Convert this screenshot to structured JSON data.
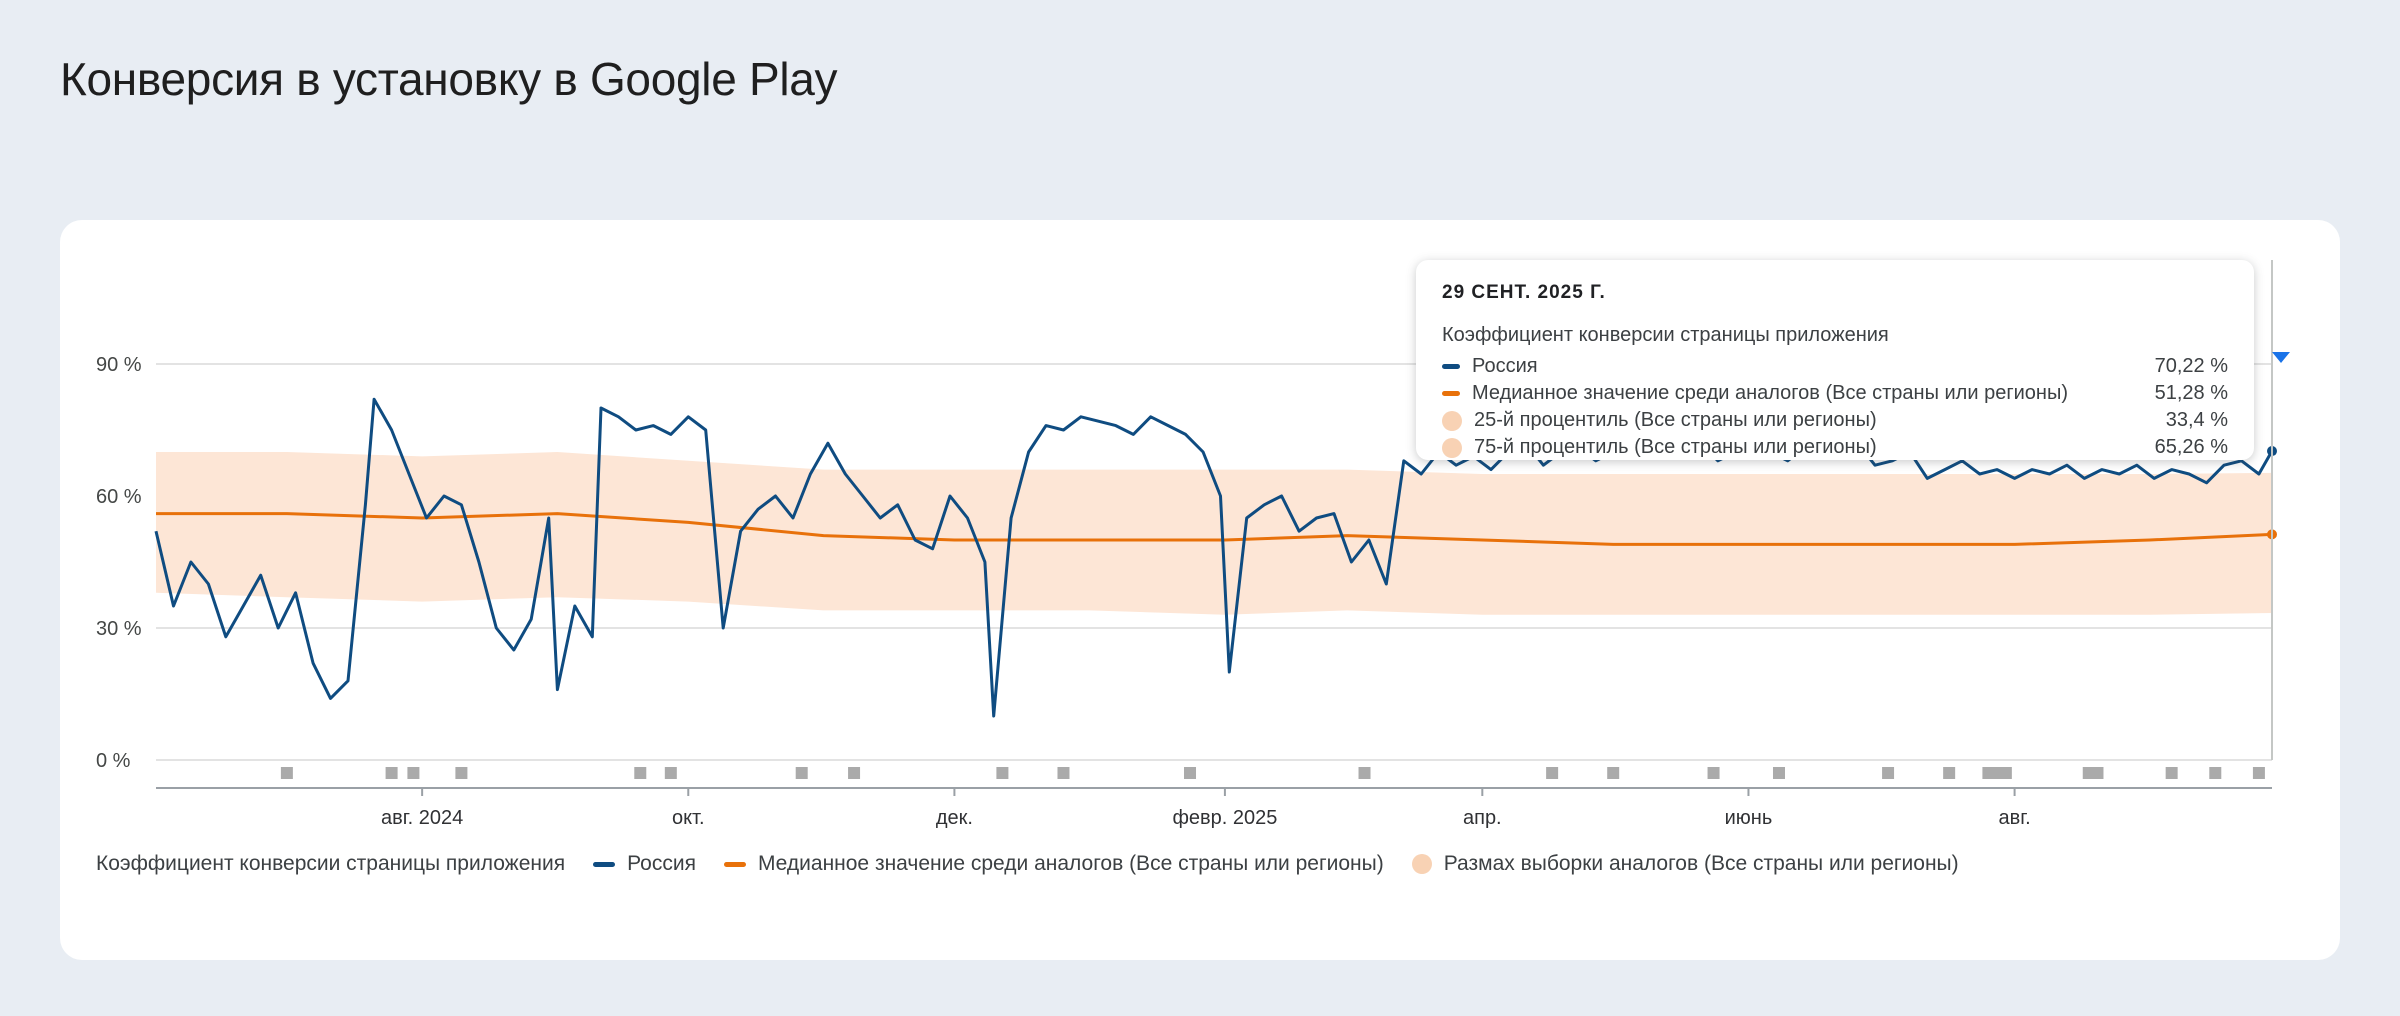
{
  "page": {
    "title": "Конверсия в установку в Google Play"
  },
  "colors": {
    "russia": "#0f4c81",
    "median": "#e8710a",
    "range": "#fde6d6",
    "range_dot": "#f8d2b4",
    "event_marker": "#aaaaaa",
    "grid": "#e3e3e3"
  },
  "chart_data": {
    "type": "line",
    "x_start": "2024-06-01",
    "x_end": "2025-09-29",
    "y_ticks": [
      "0 %",
      "30 %",
      "60 %",
      "90 %"
    ],
    "ylim": [
      0,
      100
    ],
    "x_ticks": [
      {
        "label": "авг. 2024",
        "date": "2024-08-01"
      },
      {
        "label": "окт.",
        "date": "2024-10-01"
      },
      {
        "label": "дек.",
        "date": "2024-12-01"
      },
      {
        "label": "февр. 2025",
        "date": "2025-02-01"
      },
      {
        "label": "апр.",
        "date": "2025-04-01"
      },
      {
        "label": "июнь",
        "date": "2025-06-01"
      },
      {
        "label": "авг.",
        "date": "2025-08-01"
      }
    ],
    "series": [
      {
        "name": "Россия",
        "values_by_date": [
          [
            "2024-06-01",
            52
          ],
          [
            "2024-06-05",
            35
          ],
          [
            "2024-06-09",
            45
          ],
          [
            "2024-06-13",
            40
          ],
          [
            "2024-06-17",
            28
          ],
          [
            "2024-06-21",
            35
          ],
          [
            "2024-06-25",
            42
          ],
          [
            "2024-06-29",
            30
          ],
          [
            "2024-07-03",
            38
          ],
          [
            "2024-07-07",
            22
          ],
          [
            "2024-07-11",
            14
          ],
          [
            "2024-07-15",
            18
          ],
          [
            "2024-07-19",
            58
          ],
          [
            "2024-07-21",
            82
          ],
          [
            "2024-07-25",
            75
          ],
          [
            "2024-07-29",
            65
          ],
          [
            "2024-08-02",
            55
          ],
          [
            "2024-08-06",
            60
          ],
          [
            "2024-08-10",
            58
          ],
          [
            "2024-08-14",
            45
          ],
          [
            "2024-08-18",
            30
          ],
          [
            "2024-08-22",
            25
          ],
          [
            "2024-08-26",
            32
          ],
          [
            "2024-08-30",
            55
          ],
          [
            "2024-09-01",
            16
          ],
          [
            "2024-09-05",
            35
          ],
          [
            "2024-09-09",
            28
          ],
          [
            "2024-09-11",
            80
          ],
          [
            "2024-09-15",
            78
          ],
          [
            "2024-09-19",
            75
          ],
          [
            "2024-09-23",
            76
          ],
          [
            "2024-09-27",
            74
          ],
          [
            "2024-10-01",
            78
          ],
          [
            "2024-10-05",
            75
          ],
          [
            "2024-10-09",
            30
          ],
          [
            "2024-10-13",
            52
          ],
          [
            "2024-10-17",
            57
          ],
          [
            "2024-10-21",
            60
          ],
          [
            "2024-10-25",
            55
          ],
          [
            "2024-10-29",
            65
          ],
          [
            "2024-11-02",
            72
          ],
          [
            "2024-11-06",
            65
          ],
          [
            "2024-11-10",
            60
          ],
          [
            "2024-11-14",
            55
          ],
          [
            "2024-11-18",
            58
          ],
          [
            "2024-11-22",
            50
          ],
          [
            "2024-11-26",
            48
          ],
          [
            "2024-11-30",
            60
          ],
          [
            "2024-12-04",
            55
          ],
          [
            "2024-12-08",
            45
          ],
          [
            "2024-12-10",
            10
          ],
          [
            "2024-12-14",
            55
          ],
          [
            "2024-12-18",
            70
          ],
          [
            "2024-12-22",
            76
          ],
          [
            "2024-12-26",
            75
          ],
          [
            "2024-12-30",
            78
          ],
          [
            "2025-01-03",
            77
          ],
          [
            "2025-01-07",
            76
          ],
          [
            "2025-01-11",
            74
          ],
          [
            "2025-01-15",
            78
          ],
          [
            "2025-01-19",
            76
          ],
          [
            "2025-01-23",
            74
          ],
          [
            "2025-01-27",
            70
          ],
          [
            "2025-01-31",
            60
          ],
          [
            "2025-02-02",
            20
          ],
          [
            "2025-02-06",
            55
          ],
          [
            "2025-02-10",
            58
          ],
          [
            "2025-02-14",
            60
          ],
          [
            "2025-02-18",
            52
          ],
          [
            "2025-02-22",
            55
          ],
          [
            "2025-02-26",
            56
          ],
          [
            "2025-03-02",
            45
          ],
          [
            "2025-03-06",
            50
          ],
          [
            "2025-03-10",
            40
          ],
          [
            "2025-03-14",
            68
          ],
          [
            "2025-03-18",
            65
          ],
          [
            "2025-03-22",
            70
          ],
          [
            "2025-03-26",
            67
          ],
          [
            "2025-03-30",
            69
          ],
          [
            "2025-04-03",
            66
          ],
          [
            "2025-04-07",
            70
          ],
          [
            "2025-04-11",
            72
          ],
          [
            "2025-04-15",
            67
          ],
          [
            "2025-04-19",
            70
          ],
          [
            "2025-04-23",
            71
          ],
          [
            "2025-04-27",
            68
          ],
          [
            "2025-05-01",
            70
          ],
          [
            "2025-05-05",
            72
          ],
          [
            "2025-05-09",
            69
          ],
          [
            "2025-05-13",
            71
          ],
          [
            "2025-05-17",
            70
          ],
          [
            "2025-05-21",
            72
          ],
          [
            "2025-05-25",
            68
          ],
          [
            "2025-05-29",
            70
          ],
          [
            "2025-06-02",
            73
          ],
          [
            "2025-06-06",
            70
          ],
          [
            "2025-06-10",
            68
          ],
          [
            "2025-06-14",
            71
          ],
          [
            "2025-06-18",
            69
          ],
          [
            "2025-06-22",
            70
          ],
          [
            "2025-06-26",
            72
          ],
          [
            "2025-06-30",
            67
          ],
          [
            "2025-07-04",
            68
          ],
          [
            "2025-07-08",
            70
          ],
          [
            "2025-07-12",
            64
          ],
          [
            "2025-07-16",
            66
          ],
          [
            "2025-07-20",
            68
          ],
          [
            "2025-07-24",
            65
          ],
          [
            "2025-07-28",
            66
          ],
          [
            "2025-08-01",
            64
          ],
          [
            "2025-08-05",
            66
          ],
          [
            "2025-08-09",
            65
          ],
          [
            "2025-08-13",
            67
          ],
          [
            "2025-08-17",
            64
          ],
          [
            "2025-08-21",
            66
          ],
          [
            "2025-08-25",
            65
          ],
          [
            "2025-08-29",
            67
          ],
          [
            "2025-09-02",
            64
          ],
          [
            "2025-09-06",
            66
          ],
          [
            "2025-09-10",
            65
          ],
          [
            "2025-09-14",
            63
          ],
          [
            "2025-09-18",
            67
          ],
          [
            "2025-09-22",
            68
          ],
          [
            "2025-09-26",
            65
          ],
          [
            "2025-09-29",
            70.22
          ]
        ]
      },
      {
        "name": "Медианное значение среди аналогов (Все страны или регионы)",
        "values_by_date": [
          [
            "2024-06-01",
            56
          ],
          [
            "2024-07-01",
            56
          ],
          [
            "2024-08-01",
            55
          ],
          [
            "2024-09-01",
            56
          ],
          [
            "2024-10-01",
            54
          ],
          [
            "2024-11-01",
            51
          ],
          [
            "2024-12-01",
            50
          ],
          [
            "2025-01-01",
            50
          ],
          [
            "2025-02-01",
            50
          ],
          [
            "2025-03-01",
            51
          ],
          [
            "2025-04-01",
            50
          ],
          [
            "2025-05-01",
            49
          ],
          [
            "2025-06-01",
            49
          ],
          [
            "2025-07-01",
            49
          ],
          [
            "2025-08-01",
            49
          ],
          [
            "2025-09-01",
            50
          ],
          [
            "2025-09-29",
            51.28
          ]
        ]
      },
      {
        "name": "25-й процентиль (Все страны или регионы)",
        "values_by_date": [
          [
            "2024-06-01",
            38
          ],
          [
            "2024-07-01",
            37
          ],
          [
            "2024-08-01",
            36
          ],
          [
            "2024-09-01",
            37
          ],
          [
            "2024-10-01",
            36
          ],
          [
            "2024-11-01",
            34
          ],
          [
            "2024-12-01",
            34
          ],
          [
            "2025-01-01",
            34
          ],
          [
            "2025-02-01",
            33
          ],
          [
            "2025-03-01",
            34
          ],
          [
            "2025-04-01",
            33
          ],
          [
            "2025-05-01",
            33
          ],
          [
            "2025-06-01",
            33
          ],
          [
            "2025-07-01",
            33
          ],
          [
            "2025-08-01",
            33
          ],
          [
            "2025-09-01",
            33
          ],
          [
            "2025-09-29",
            33.4
          ]
        ]
      },
      {
        "name": "75-й процентиль (Все страны или регионы)",
        "values_by_date": [
          [
            "2024-06-01",
            70
          ],
          [
            "2024-07-01",
            70
          ],
          [
            "2024-08-01",
            69
          ],
          [
            "2024-09-01",
            70
          ],
          [
            "2024-10-01",
            68
          ],
          [
            "2024-11-01",
            66
          ],
          [
            "2024-12-01",
            66
          ],
          [
            "2025-01-01",
            66
          ],
          [
            "2025-02-01",
            66
          ],
          [
            "2025-03-01",
            66
          ],
          [
            "2025-04-01",
            65
          ],
          [
            "2025-05-01",
            65
          ],
          [
            "2025-06-01",
            65
          ],
          [
            "2025-07-01",
            65
          ],
          [
            "2025-08-01",
            65
          ],
          [
            "2025-09-01",
            65
          ],
          [
            "2025-09-29",
            65.26
          ]
        ]
      }
    ],
    "event_marker_dates": [
      "2024-07-01",
      "2024-07-25",
      "2024-07-30",
      "2024-08-10",
      "2024-09-20",
      "2024-09-27",
      "2024-10-27",
      "2024-11-08",
      "2024-12-12",
      "2024-12-26",
      "2025-01-24",
      "2025-03-05",
      "2025-04-17",
      "2025-05-01",
      "2025-05-24",
      "2025-06-08",
      "2025-07-03",
      "2025-07-17",
      "2025-07-26",
      "2025-07-28",
      "2025-07-30",
      "2025-08-18",
      "2025-08-20",
      "2025-09-06",
      "2025-09-16",
      "2025-09-26"
    ]
  },
  "legend": {
    "title": "Коэффициент конверсии страницы приложения",
    "items": [
      {
        "label": "Россия",
        "kind": "line",
        "color": "#0f4c81"
      },
      {
        "label": "Медианное значение среди аналогов (Все страны или регионы)",
        "kind": "line",
        "color": "#e8710a"
      },
      {
        "label": "Размах выборки аналогов (Все страны или регионы)",
        "kind": "dot",
        "color": "#f8d2b4"
      }
    ]
  },
  "tooltip": {
    "date": "29 СЕНТ. 2025 Г.",
    "metric": "Коэффициент конверсии страницы приложения",
    "rows": [
      {
        "label": "Россия",
        "value": "70,22 %",
        "kind": "line",
        "color": "#0f4c81"
      },
      {
        "label": "Медианное значение среди аналогов (Все страны или регионы)",
        "value": "51,28 %",
        "kind": "line",
        "color": "#e8710a"
      },
      {
        "label": "25-й процентиль (Все страны или регионы)",
        "value": "33,4 %",
        "kind": "dot",
        "color": "#f8d2b4"
      },
      {
        "label": "75-й процентиль (Все страны или регионы)",
        "value": "65,26 %",
        "kind": "dot",
        "color": "#f8d2b4"
      }
    ]
  }
}
